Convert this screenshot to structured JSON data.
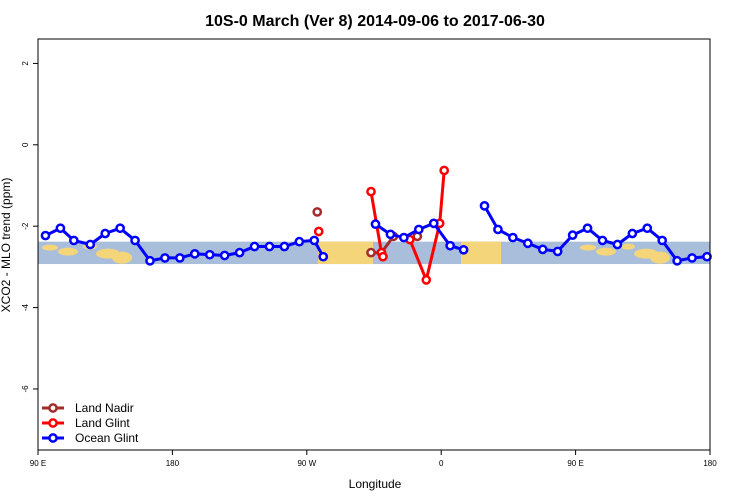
{
  "chart_data": {
    "type": "line",
    "title": "10S-0 March (Ver 8)   2014-09-06 to 2017-06-30",
    "xlabel": "Longitude",
    "ylabel": "XCO2 - MLO trend (ppm)",
    "xlim": [
      90,
      540
    ],
    "ylim": [
      -7.5,
      2.6
    ],
    "x_ticks": [
      {
        "value": 90,
        "label": "90 E"
      },
      {
        "value": 180,
        "label": "180"
      },
      {
        "value": 270,
        "label": "90 W"
      },
      {
        "value": 360,
        "label": "0"
      },
      {
        "value": 450,
        "label": "90 E"
      },
      {
        "value": 540,
        "label": "180"
      }
    ],
    "y_ticks": [
      {
        "value": 2,
        "label": "2"
      },
      {
        "value": 0,
        "label": "0"
      },
      {
        "value": -2,
        "label": "-2"
      },
      {
        "value": -4,
        "label": "-4"
      },
      {
        "value": -6,
        "label": "-6"
      }
    ],
    "band": {
      "y_top": -2.38,
      "y_bottom": -2.93
    },
    "series": [
      {
        "name": "Land Nadir",
        "color": "#a52a2a",
        "segments": [
          [
            [
              277,
              -1.65
            ]
          ],
          [
            [
              313,
              -2.65
            ],
            [
              320,
              -2.65
            ],
            [
              328,
              -2.25
            ]
          ],
          [
            [
              344,
              -2.25
            ]
          ]
        ]
      },
      {
        "name": "Land Glint",
        "color": "#ff0000",
        "segments": [
          [
            [
              278,
              -2.13
            ]
          ],
          [
            [
              313,
              -1.15
            ],
            [
              320,
              -2.65
            ],
            [
              321,
              -2.75
            ]
          ],
          [
            [
              339,
              -2.33
            ],
            [
              350,
              -3.32
            ],
            [
              359,
              -1.93
            ],
            [
              362,
              -0.63
            ]
          ]
        ]
      },
      {
        "name": "Ocean Glint",
        "color": "#0000ff",
        "segments": [
          [
            [
              95,
              -2.23
            ],
            [
              105,
              -2.05
            ],
            [
              114,
              -2.35
            ],
            [
              125,
              -2.45
            ],
            [
              135,
              -2.18
            ],
            [
              145,
              -2.05
            ],
            [
              155,
              -2.35
            ],
            [
              165,
              -2.85
            ],
            [
              175,
              -2.78
            ],
            [
              185,
              -2.78
            ],
            [
              195,
              -2.68
            ],
            [
              205,
              -2.7
            ],
            [
              215,
              -2.72
            ],
            [
              225,
              -2.65
            ],
            [
              235,
              -2.5
            ],
            [
              245,
              -2.5
            ],
            [
              255,
              -2.5
            ],
            [
              265,
              -2.38
            ],
            [
              275,
              -2.35
            ],
            [
              281,
              -2.75
            ]
          ],
          [
            [
              316,
              -1.95
            ],
            [
              326,
              -2.2
            ],
            [
              335,
              -2.28
            ],
            [
              345,
              -2.08
            ],
            [
              355,
              -1.93
            ],
            [
              366,
              -2.48
            ],
            [
              375,
              -2.58
            ]
          ],
          [
            [
              389,
              -1.5
            ],
            [
              398,
              -2.08
            ],
            [
              408,
              -2.28
            ],
            [
              418,
              -2.42
            ],
            [
              428,
              -2.57
            ],
            [
              438,
              -2.62
            ],
            [
              448,
              -2.22
            ],
            [
              458,
              -2.05
            ],
            [
              468,
              -2.35
            ],
            [
              478,
              -2.45
            ],
            [
              488,
              -2.18
            ],
            [
              498,
              -2.05
            ],
            [
              508,
              -2.35
            ],
            [
              518,
              -2.85
            ],
            [
              528,
              -2.78
            ],
            [
              538,
              -2.75
            ]
          ]
        ]
      }
    ],
    "legend": {
      "position": "bottom-left"
    }
  }
}
